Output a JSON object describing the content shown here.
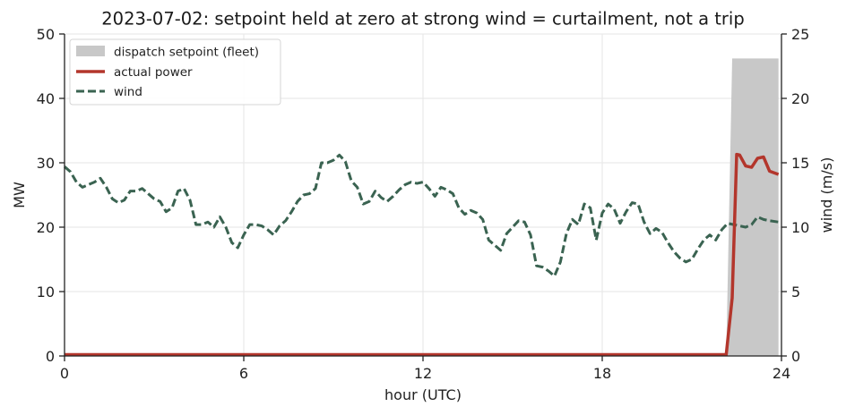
{
  "chart_data": {
    "type": "line",
    "title": "2023-07-02: setpoint held at zero at strong wind = curtailment, not a trip",
    "xlabel": "hour (UTC)",
    "ylabel": "MW",
    "y2label": "wind (m/s)",
    "xlim": [
      0,
      24
    ],
    "ylim": [
      0,
      50
    ],
    "y2lim": [
      0,
      25
    ],
    "xticks": [
      "0",
      "6",
      "12",
      "18",
      "24"
    ],
    "yticks": [
      "0",
      "10",
      "20",
      "30",
      "40",
      "50"
    ],
    "y2ticks": [
      "0",
      "5",
      "10",
      "15",
      "20",
      "25"
    ],
    "grid": true,
    "legend_position": "upper-left",
    "colors": {
      "setpoint": "#c8c8c8",
      "actual": "#b3362c",
      "wind": "#3a6351"
    },
    "series": [
      {
        "name": "dispatch setpoint (fleet)",
        "kind": "area",
        "axis": "left",
        "x": [
          0,
          22.15,
          22.35,
          23.0,
          23.9
        ],
        "y": [
          0,
          0,
          46.2,
          46.2,
          46.2
        ]
      },
      {
        "name": "actual power",
        "kind": "line",
        "axis": "left",
        "x": [
          0,
          22.15,
          22.35,
          22.5,
          22.6,
          22.8,
          23.0,
          23.2,
          23.4,
          23.6,
          23.9
        ],
        "y": [
          0.2,
          0.2,
          9.0,
          31.3,
          31.2,
          29.5,
          29.3,
          30.7,
          30.9,
          28.7,
          28.2
        ]
      },
      {
        "name": "wind",
        "kind": "dashed-line",
        "axis": "right",
        "x": [
          0,
          0.2,
          0.4,
          0.6,
          0.8,
          1.0,
          1.2,
          1.4,
          1.6,
          1.8,
          2.0,
          2.2,
          2.4,
          2.6,
          2.8,
          3.0,
          3.2,
          3.4,
          3.6,
          3.8,
          4.0,
          4.2,
          4.4,
          4.6,
          4.8,
          5.0,
          5.2,
          5.4,
          5.6,
          5.8,
          6.0,
          6.2,
          6.4,
          6.6,
          6.8,
          7.0,
          7.2,
          7.4,
          7.6,
          7.8,
          8.0,
          8.2,
          8.4,
          8.6,
          8.8,
          9.0,
          9.2,
          9.4,
          9.6,
          9.8,
          10.0,
          10.2,
          10.4,
          10.6,
          10.8,
          11.0,
          11.2,
          11.4,
          11.6,
          11.8,
          12.0,
          12.2,
          12.4,
          12.6,
          12.8,
          13.0,
          13.2,
          13.4,
          13.6,
          13.8,
          14.0,
          14.2,
          14.4,
          14.6,
          14.8,
          15.0,
          15.2,
          15.4,
          15.6,
          15.8,
          16.0,
          16.2,
          16.4,
          16.6,
          16.8,
          17.0,
          17.2,
          17.4,
          17.6,
          17.8,
          18.0,
          18.2,
          18.4,
          18.6,
          18.8,
          19.0,
          19.2,
          19.4,
          19.6,
          19.8,
          20.0,
          20.2,
          20.4,
          20.6,
          20.8,
          21.0,
          21.2,
          21.4,
          21.6,
          21.8,
          22.0,
          22.2,
          22.4,
          22.6,
          22.8,
          23.0,
          23.2,
          23.4,
          23.6,
          23.9
        ],
        "y": [
          14.7,
          14.3,
          13.5,
          13.1,
          13.3,
          13.5,
          13.8,
          13.1,
          12.2,
          11.9,
          12.1,
          12.8,
          12.8,
          13.0,
          12.6,
          12.2,
          12.0,
          11.2,
          11.5,
          12.8,
          13.0,
          12.1,
          10.2,
          10.2,
          10.4,
          10.0,
          10.8,
          10.0,
          8.8,
          8.4,
          9.4,
          10.2,
          10.2,
          10.1,
          9.8,
          9.4,
          10.1,
          10.5,
          11.2,
          12.0,
          12.5,
          12.6,
          13.0,
          15.0,
          15.0,
          15.2,
          15.6,
          15.1,
          13.6,
          13.1,
          11.8,
          12.0,
          12.8,
          12.3,
          12.0,
          12.4,
          12.9,
          13.3,
          13.5,
          13.4,
          13.5,
          13.0,
          12.4,
          13.1,
          12.9,
          12.6,
          11.5,
          11.0,
          11.3,
          11.1,
          10.6,
          9.0,
          8.6,
          8.2,
          9.5,
          10.0,
          10.5,
          10.4,
          9.4,
          7.0,
          6.9,
          6.6,
          6.2,
          7.3,
          9.5,
          10.6,
          10.2,
          11.8,
          11.5,
          9.0,
          11.1,
          11.8,
          11.4,
          10.3,
          11.2,
          11.9,
          11.8,
          10.4,
          9.5,
          9.9,
          9.6,
          8.8,
          8.1,
          7.6,
          7.3,
          7.5,
          8.3,
          9.0,
          9.4,
          9.0,
          9.8,
          10.3,
          10.2,
          10.1,
          10.0,
          10.2,
          10.8,
          10.6,
          10.5,
          10.4
        ]
      }
    ]
  }
}
